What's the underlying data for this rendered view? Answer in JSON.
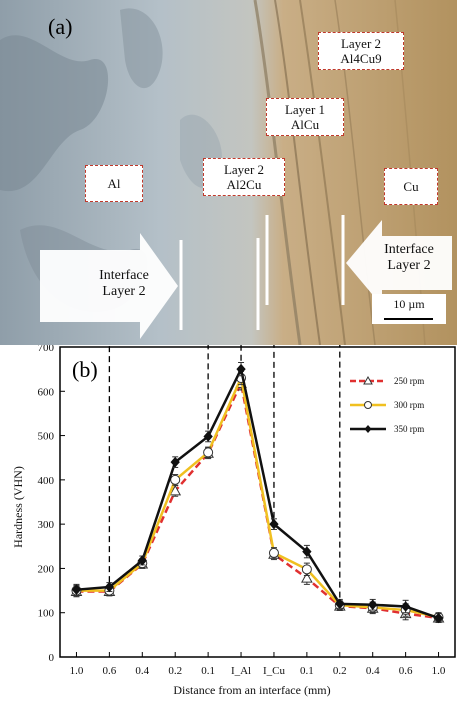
{
  "micrograph": {
    "panel_label": "(a)",
    "callouts": {
      "layer2_al4cu9": [
        "Layer 2",
        "Al4Cu9"
      ],
      "layer1_alcu": [
        "Layer 1",
        "AlCu"
      ],
      "layer2_al2cu": [
        "Layer 2",
        "Al2Cu"
      ],
      "al": "Al",
      "cu": "Cu"
    },
    "arrows": {
      "left": [
        "Interface",
        "Layer 2"
      ],
      "right": [
        "Interface",
        "Layer 2"
      ]
    },
    "scale_bar": "10 µm",
    "colors": {
      "al_side": "#a9b7c2",
      "cu_side": "#b99a6e",
      "callout_border": "#c0392b"
    }
  },
  "chart_data": {
    "type": "line",
    "panel_label": "(b)",
    "xlabel": "Distance from an interface (mm)",
    "ylabel": "Hardness  (VHN)",
    "categories": [
      "1.0",
      "0.6",
      "0.4",
      "0.2",
      "0.1",
      "I_Al",
      "I_Cu",
      "0.1",
      "0.2",
      "0.4",
      "0.6",
      "1.0"
    ],
    "ylim": [
      0,
      700
    ],
    "yticks": [
      0,
      100,
      200,
      300,
      400,
      500,
      600,
      700
    ],
    "grid": false,
    "legend_position": "top-right",
    "series": [
      {
        "name": "250 rpm",
        "color": "#e03030",
        "dash": "dashed",
        "marker": "triangle",
        "values": [
          148,
          148,
          210,
          375,
          460,
          618,
          232,
          178,
          115,
          110,
          98,
          88
        ],
        "errors": [
          12,
          10,
          10,
          12,
          12,
          15,
          12,
          14,
          10,
          12,
          14,
          10
        ]
      },
      {
        "name": "300 rpm",
        "color": "#f0c020",
        "dash": "solid",
        "marker": "circle",
        "values": [
          150,
          150,
          212,
          400,
          462,
          630,
          235,
          198,
          117,
          112,
          106,
          90
        ],
        "errors": [
          12,
          10,
          10,
          12,
          12,
          15,
          12,
          14,
          10,
          12,
          14,
          10
        ]
      },
      {
        "name": "350 rpm",
        "color": "#111111",
        "dash": "solid",
        "marker": "diamond",
        "values": [
          152,
          158,
          218,
          440,
          498,
          650,
          300,
          238,
          120,
          118,
          114,
          88
        ],
        "errors": [
          12,
          10,
          10,
          12,
          12,
          15,
          12,
          14,
          10,
          12,
          14,
          10
        ]
      }
    ]
  }
}
